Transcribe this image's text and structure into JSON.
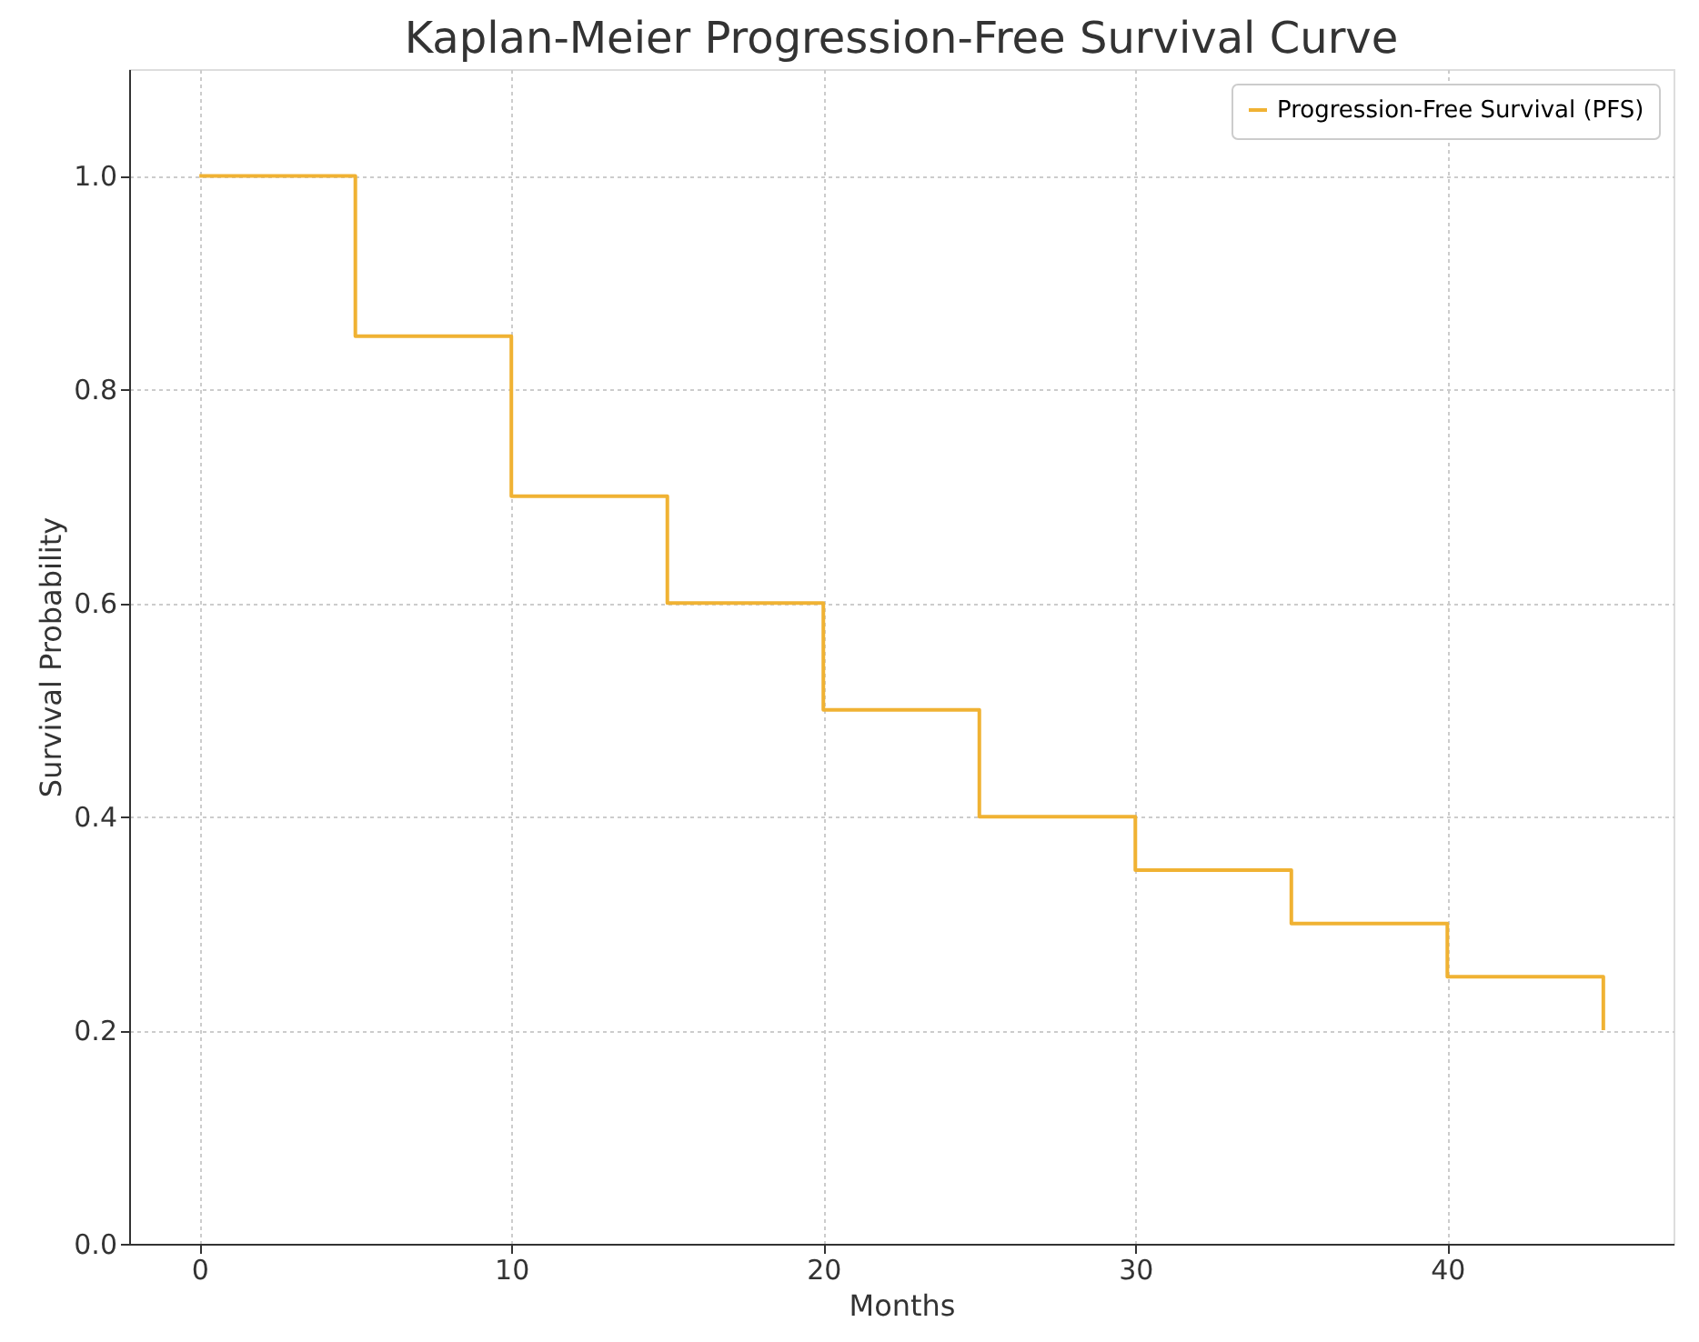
{
  "chart_data": {
    "type": "step",
    "title": "Kaplan-Meier Progression-Free Survival Curve",
    "xlabel": "Months",
    "ylabel": "Survival Probability",
    "x": [
      0,
      5,
      10,
      15,
      20,
      25,
      30,
      35,
      40,
      45
    ],
    "series": [
      {
        "name": "Progression-Free Survival (PFS)",
        "color": "#f0b233",
        "values": [
          1.0,
          0.85,
          0.7,
          0.6,
          0.5,
          0.4,
          0.35,
          0.3,
          0.25,
          0.2
        ]
      }
    ],
    "xlim": [
      -2.25,
      47.25
    ],
    "xticks": [
      0,
      10,
      20,
      30,
      40
    ],
    "ylim": [
      0,
      1.1
    ],
    "yticks": [
      {
        "value": 0,
        "label": "0.0"
      },
      0.2,
      0.4,
      0.6,
      0.8,
      {
        "value": 1,
        "label": "1.0"
      }
    ],
    "grid": true,
    "legend": "top right",
    "line_style": "solid",
    "marker": "none"
  }
}
